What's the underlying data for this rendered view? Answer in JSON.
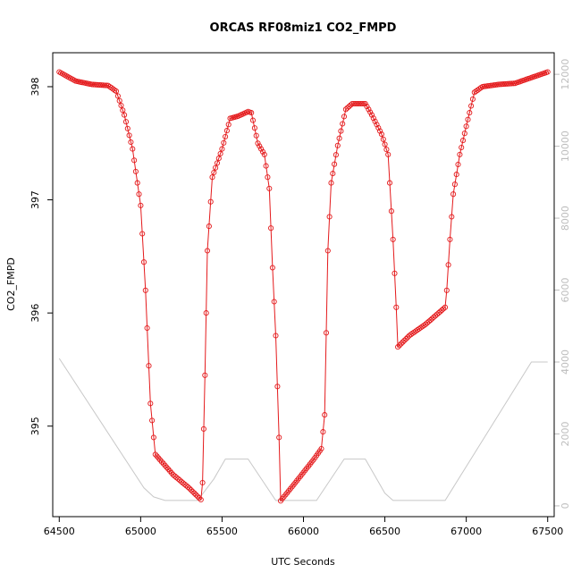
{
  "chart_data": {
    "type": "line",
    "title": "ORCAS RF08miz1 CO2_FMPD",
    "xlabel": "UTC Seconds",
    "ylabel": "CO2_FMPD",
    "xlim": [
      64460,
      67540
    ],
    "ylim": [
      394.2,
      398.3
    ],
    "y2lim": [
      -300,
      12600
    ],
    "x_ticks": [
      64500,
      65000,
      65500,
      66000,
      66500,
      67000,
      67500
    ],
    "y_ticks": [
      395,
      396,
      397,
      398
    ],
    "y2_ticks": [
      0,
      2000,
      4000,
      6000,
      8000,
      10000,
      12000
    ],
    "colors": {
      "primary": "#e41a1c",
      "secondary": "#c8c8c8"
    },
    "series": [
      {
        "axis": "left",
        "style": "line+points",
        "color": "#e41a1c",
        "points": [
          [
            64500,
            398.13
          ],
          [
            64600,
            398.05
          ],
          [
            64700,
            398.02
          ],
          [
            64800,
            398.01
          ],
          [
            64850,
            397.96
          ],
          [
            64900,
            397.75
          ],
          [
            64950,
            397.45
          ],
          [
            65000,
            396.95
          ],
          [
            65030,
            396.2
          ],
          [
            65060,
            395.2
          ],
          [
            65090,
            394.75
          ],
          [
            65200,
            394.57
          ],
          [
            65300,
            394.45
          ],
          [
            65370,
            394.35
          ],
          [
            65380,
            394.5
          ],
          [
            65395,
            395.45
          ],
          [
            65410,
            396.55
          ],
          [
            65440,
            397.2
          ],
          [
            65500,
            397.45
          ],
          [
            65550,
            397.72
          ],
          [
            65600,
            397.74
          ],
          [
            65660,
            397.78
          ],
          [
            65680,
            397.77
          ],
          [
            65720,
            397.5
          ],
          [
            65760,
            397.4
          ],
          [
            65790,
            397.1
          ],
          [
            65810,
            396.4
          ],
          [
            65830,
            395.8
          ],
          [
            65850,
            394.9
          ],
          [
            65860,
            394.34
          ],
          [
            65950,
            394.5
          ],
          [
            66060,
            394.7
          ],
          [
            66110,
            394.8
          ],
          [
            66130,
            395.1
          ],
          [
            66150,
            396.55
          ],
          [
            66170,
            397.15
          ],
          [
            66210,
            397.48
          ],
          [
            66260,
            397.8
          ],
          [
            66300,
            397.85
          ],
          [
            66380,
            397.85
          ],
          [
            66420,
            397.75
          ],
          [
            66480,
            397.58
          ],
          [
            66520,
            397.4
          ],
          [
            66550,
            396.65
          ],
          [
            66570,
            396.05
          ],
          [
            66580,
            395.7
          ],
          [
            66650,
            395.8
          ],
          [
            66750,
            395.9
          ],
          [
            66870,
            396.05
          ],
          [
            66880,
            396.2
          ],
          [
            66900,
            396.65
          ],
          [
            66920,
            397.05
          ],
          [
            66960,
            397.4
          ],
          [
            67000,
            397.65
          ],
          [
            67050,
            397.95
          ],
          [
            67100,
            398.0
          ],
          [
            67200,
            398.02
          ],
          [
            67300,
            398.03
          ],
          [
            67400,
            398.08
          ],
          [
            67500,
            398.13
          ]
        ]
      },
      {
        "axis": "right",
        "style": "line",
        "color": "#c8c8c8",
        "points": [
          [
            64500,
            4100
          ],
          [
            65020,
            500
          ],
          [
            65080,
            250
          ],
          [
            65150,
            150
          ],
          [
            65350,
            150
          ],
          [
            65450,
            750
          ],
          [
            65520,
            1300
          ],
          [
            65660,
            1300
          ],
          [
            65830,
            150
          ],
          [
            66080,
            150
          ],
          [
            66250,
            1300
          ],
          [
            66380,
            1300
          ],
          [
            66500,
            350
          ],
          [
            66550,
            150
          ],
          [
            66870,
            150
          ],
          [
            67400,
            4000
          ],
          [
            67500,
            4000
          ]
        ]
      }
    ]
  }
}
